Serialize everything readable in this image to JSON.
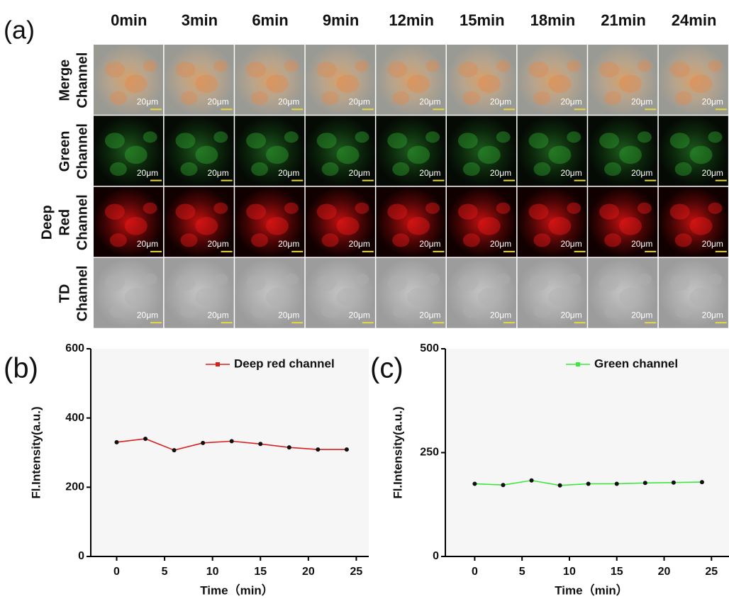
{
  "panel_a": {
    "label": "(a)",
    "columns": [
      "0min",
      "3min",
      "6min",
      "9min",
      "12min",
      "15min",
      "18min",
      "21min",
      "24min"
    ],
    "rows": [
      [
        "Merge",
        "Channel"
      ],
      [
        "Green",
        "Channel"
      ],
      [
        "Deep",
        "Red",
        "Channel"
      ],
      [
        "TD",
        "Channel"
      ]
    ],
    "scale_bar": "20μm"
  },
  "chart_data": [
    {
      "type": "line",
      "panel_label": "(b)",
      "x_label": "Time（min）",
      "y_label": "Fl.Intensity(a.u.)",
      "x": [
        0,
        3,
        6,
        9,
        12,
        15,
        18,
        21,
        24
      ],
      "series": [
        {
          "name": "Deep red channel",
          "color": "#d62020",
          "values": [
            330,
            340,
            307,
            328,
            333,
            325,
            315,
            309,
            309
          ]
        }
      ],
      "xlim": [
        -2.7,
        26.3
      ],
      "xticks": [
        0,
        5,
        10,
        15,
        20,
        25
      ],
      "ylim": [
        0,
        600
      ],
      "yticks": [
        0,
        200,
        400,
        600
      ],
      "legend": "top-right"
    },
    {
      "type": "line",
      "panel_label": "(c)",
      "x_label": "Time（min）",
      "y_label": "Fl.Intensity(a.u.)",
      "x": [
        0,
        3,
        6,
        9,
        12,
        15,
        18,
        21,
        24
      ],
      "series": [
        {
          "name": "Green channel",
          "color": "#3ee83e",
          "values": [
            175,
            172,
            183,
            171,
            175,
            175,
            177,
            178,
            179
          ]
        }
      ],
      "xlim": [
        -3.1,
        26.85
      ],
      "xticks": [
        0,
        5,
        10,
        15,
        20,
        25
      ],
      "ylim": [
        0,
        500
      ],
      "yticks": [
        0,
        250,
        500
      ],
      "legend": "top-right"
    }
  ]
}
